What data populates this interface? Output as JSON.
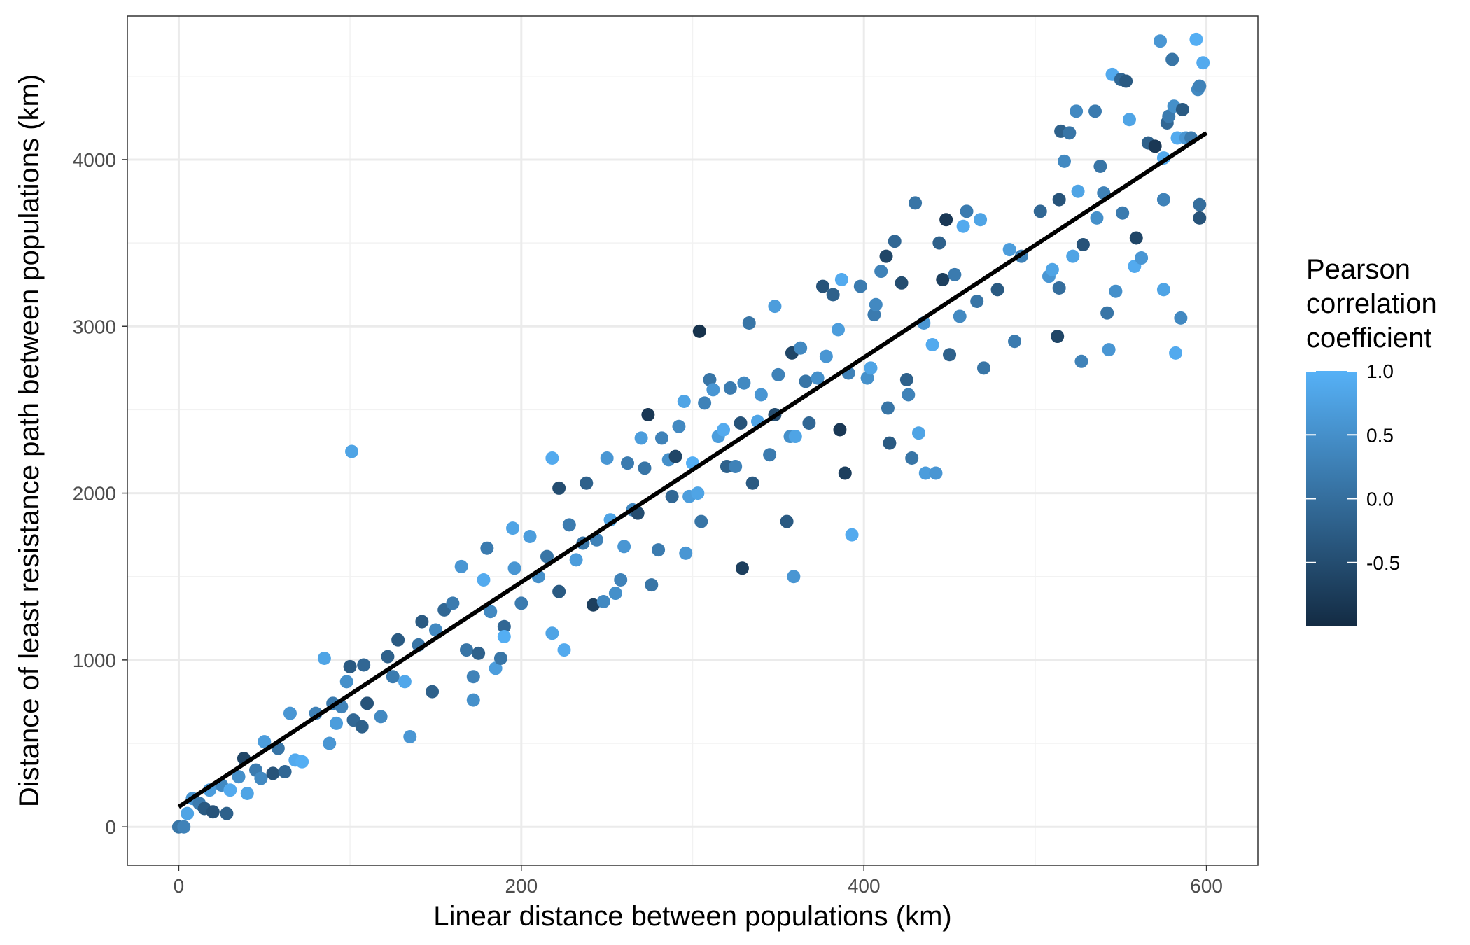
{
  "chart_data": {
    "type": "scatter",
    "title": "",
    "xlabel": "Linear distance between populations (km)",
    "ylabel": "Distance of least resistance path between populations (km)",
    "xlim": [
      -30,
      630
    ],
    "ylim": [
      -230,
      4860
    ],
    "x_ticks": [
      0,
      200,
      400,
      600
    ],
    "y_ticks": [
      0,
      1000,
      2000,
      3000,
      4000
    ],
    "grid": true,
    "legend": {
      "title": [
        "Pearson",
        "correlation",
        "coefficient"
      ],
      "position": "right",
      "type": "colorbar",
      "range": [
        -1.0,
        1.0
      ],
      "ticks": [
        1.0,
        0.5,
        0.0,
        -0.5
      ],
      "tick_labels": [
        "1.0",
        "0.5",
        "0.0",
        "-0.5"
      ],
      "color_low": "#132B43",
      "color_high": "#56B1F7"
    },
    "trend_line": {
      "x": [
        0,
        600
      ],
      "y": [
        120,
        4160
      ],
      "color": "#000000"
    },
    "points": [
      {
        "x": 0,
        "y": 0,
        "c": 0.1
      },
      {
        "x": 3,
        "y": 0,
        "c": 0.3
      },
      {
        "x": 5,
        "y": 80,
        "c": 0.8
      },
      {
        "x": 8,
        "y": 170,
        "c": 0.6
      },
      {
        "x": 12,
        "y": 140,
        "c": 0.2
      },
      {
        "x": 15,
        "y": 110,
        "c": -0.3
      },
      {
        "x": 18,
        "y": 220,
        "c": 0.7
      },
      {
        "x": 20,
        "y": 90,
        "c": -0.4
      },
      {
        "x": 25,
        "y": 250,
        "c": 0.4
      },
      {
        "x": 28,
        "y": 80,
        "c": -0.2
      },
      {
        "x": 30,
        "y": 220,
        "c": 0.9
      },
      {
        "x": 35,
        "y": 300,
        "c": 0.5
      },
      {
        "x": 38,
        "y": 410,
        "c": -0.6
      },
      {
        "x": 40,
        "y": 200,
        "c": 0.8
      },
      {
        "x": 45,
        "y": 340,
        "c": 0.2
      },
      {
        "x": 48,
        "y": 290,
        "c": 0.4
      },
      {
        "x": 50,
        "y": 510,
        "c": 0.7
      },
      {
        "x": 55,
        "y": 320,
        "c": -0.4
      },
      {
        "x": 58,
        "y": 470,
        "c": 0.1
      },
      {
        "x": 62,
        "y": 330,
        "c": -0.1
      },
      {
        "x": 65,
        "y": 680,
        "c": 0.6
      },
      {
        "x": 68,
        "y": 400,
        "c": 0.9
      },
      {
        "x": 72,
        "y": 390,
        "c": 0.95
      },
      {
        "x": 80,
        "y": 680,
        "c": 0.3
      },
      {
        "x": 85,
        "y": 1010,
        "c": 0.8
      },
      {
        "x": 88,
        "y": 500,
        "c": 0.6
      },
      {
        "x": 90,
        "y": 740,
        "c": 0.2
      },
      {
        "x": 92,
        "y": 620,
        "c": 0.7
      },
      {
        "x": 95,
        "y": 720,
        "c": 0.3
      },
      {
        "x": 98,
        "y": 870,
        "c": 0.5
      },
      {
        "x": 100,
        "y": 960,
        "c": -0.3
      },
      {
        "x": 101,
        "y": 2250,
        "c": 0.8
      },
      {
        "x": 102,
        "y": 640,
        "c": -0.1
      },
      {
        "x": 107,
        "y": 600,
        "c": -0.2
      },
      {
        "x": 108,
        "y": 970,
        "c": -0.1
      },
      {
        "x": 110,
        "y": 740,
        "c": -0.4
      },
      {
        "x": 118,
        "y": 660,
        "c": 0.4
      },
      {
        "x": 122,
        "y": 1020,
        "c": -0.2
      },
      {
        "x": 125,
        "y": 900,
        "c": 0.2
      },
      {
        "x": 128,
        "y": 1120,
        "c": -0.3
      },
      {
        "x": 132,
        "y": 870,
        "c": 0.85
      },
      {
        "x": 135,
        "y": 540,
        "c": 0.6
      },
      {
        "x": 140,
        "y": 1090,
        "c": 0.1
      },
      {
        "x": 142,
        "y": 1230,
        "c": -0.3
      },
      {
        "x": 148,
        "y": 810,
        "c": -0.2
      },
      {
        "x": 150,
        "y": 1180,
        "c": 0.4
      },
      {
        "x": 155,
        "y": 1300,
        "c": -0.1
      },
      {
        "x": 160,
        "y": 1340,
        "c": 0.2
      },
      {
        "x": 165,
        "y": 1560,
        "c": 0.6
      },
      {
        "x": 168,
        "y": 1060,
        "c": 0.1
      },
      {
        "x": 172,
        "y": 900,
        "c": 0.3
      },
      {
        "x": 172,
        "y": 760,
        "c": 0.5
      },
      {
        "x": 175,
        "y": 1040,
        "c": -0.2
      },
      {
        "x": 178,
        "y": 1480,
        "c": 0.9
      },
      {
        "x": 180,
        "y": 1670,
        "c": 0.2
      },
      {
        "x": 182,
        "y": 1290,
        "c": 0.4
      },
      {
        "x": 185,
        "y": 950,
        "c": 0.7
      },
      {
        "x": 188,
        "y": 1010,
        "c": 0.1
      },
      {
        "x": 190,
        "y": 1200,
        "c": -0.1
      },
      {
        "x": 190,
        "y": 1140,
        "c": 0.95
      },
      {
        "x": 195,
        "y": 1790,
        "c": 0.8
      },
      {
        "x": 196,
        "y": 1550,
        "c": 0.6
      },
      {
        "x": 200,
        "y": 1340,
        "c": 0.2
      },
      {
        "x": 205,
        "y": 1740,
        "c": 0.7
      },
      {
        "x": 210,
        "y": 1500,
        "c": 0.5
      },
      {
        "x": 215,
        "y": 1620,
        "c": 0.1
      },
      {
        "x": 218,
        "y": 1160,
        "c": 0.8
      },
      {
        "x": 218,
        "y": 2210,
        "c": 0.9
      },
      {
        "x": 222,
        "y": 1410,
        "c": -0.3
      },
      {
        "x": 222,
        "y": 2030,
        "c": -0.5
      },
      {
        "x": 225,
        "y": 1060,
        "c": 0.9
      },
      {
        "x": 228,
        "y": 1810,
        "c": 0.2
      },
      {
        "x": 232,
        "y": 1600,
        "c": 0.7
      },
      {
        "x": 236,
        "y": 1700,
        "c": 0.1
      },
      {
        "x": 238,
        "y": 2060,
        "c": -0.2
      },
      {
        "x": 242,
        "y": 1330,
        "c": -0.7
      },
      {
        "x": 244,
        "y": 1720,
        "c": 0.3
      },
      {
        "x": 248,
        "y": 1350,
        "c": 0.4
      },
      {
        "x": 250,
        "y": 2210,
        "c": 0.6
      },
      {
        "x": 252,
        "y": 1840,
        "c": 0.8
      },
      {
        "x": 255,
        "y": 1400,
        "c": 0.5
      },
      {
        "x": 258,
        "y": 1480,
        "c": 0.3
      },
      {
        "x": 260,
        "y": 1680,
        "c": 0.6
      },
      {
        "x": 262,
        "y": 2180,
        "c": 0.2
      },
      {
        "x": 265,
        "y": 1900,
        "c": 0.4
      },
      {
        "x": 268,
        "y": 1880,
        "c": -0.5
      },
      {
        "x": 270,
        "y": 2330,
        "c": 0.7
      },
      {
        "x": 272,
        "y": 2150,
        "c": 0.1
      },
      {
        "x": 274,
        "y": 2470,
        "c": -0.8
      },
      {
        "x": 276,
        "y": 1450,
        "c": 0.1
      },
      {
        "x": 280,
        "y": 1660,
        "c": 0.2
      },
      {
        "x": 282,
        "y": 2330,
        "c": 0.3
      },
      {
        "x": 286,
        "y": 2200,
        "c": 0.5
      },
      {
        "x": 288,
        "y": 1980,
        "c": -0.1
      },
      {
        "x": 290,
        "y": 2220,
        "c": -0.6
      },
      {
        "x": 292,
        "y": 2400,
        "c": 0.4
      },
      {
        "x": 295,
        "y": 2550,
        "c": 0.8
      },
      {
        "x": 296,
        "y": 1640,
        "c": 0.6
      },
      {
        "x": 298,
        "y": 1980,
        "c": 0.7
      },
      {
        "x": 300,
        "y": 2180,
        "c": 0.95
      },
      {
        "x": 303,
        "y": 2000,
        "c": 0.8
      },
      {
        "x": 304,
        "y": 2970,
        "c": -0.9
      },
      {
        "x": 305,
        "y": 1830,
        "c": 0.1
      },
      {
        "x": 307,
        "y": 2540,
        "c": 0.3
      },
      {
        "x": 310,
        "y": 2680,
        "c": 0.1
      },
      {
        "x": 312,
        "y": 2620,
        "c": 0.6
      },
      {
        "x": 315,
        "y": 2340,
        "c": 0.7
      },
      {
        "x": 318,
        "y": 2380,
        "c": 0.9
      },
      {
        "x": 320,
        "y": 2160,
        "c": -0.2
      },
      {
        "x": 322,
        "y": 2630,
        "c": 0.2
      },
      {
        "x": 325,
        "y": 2160,
        "c": 0.3
      },
      {
        "x": 328,
        "y": 2420,
        "c": -0.4
      },
      {
        "x": 329,
        "y": 1550,
        "c": -0.7
      },
      {
        "x": 330,
        "y": 2660,
        "c": 0.4
      },
      {
        "x": 333,
        "y": 3020,
        "c": 0.1
      },
      {
        "x": 335,
        "y": 2060,
        "c": -0.3
      },
      {
        "x": 338,
        "y": 2430,
        "c": 0.8
      },
      {
        "x": 340,
        "y": 2590,
        "c": 0.6
      },
      {
        "x": 345,
        "y": 2230,
        "c": 0.2
      },
      {
        "x": 348,
        "y": 2470,
        "c": -0.5
      },
      {
        "x": 348,
        "y": 3120,
        "c": 0.7
      },
      {
        "x": 350,
        "y": 2710,
        "c": 0.3
      },
      {
        "x": 355,
        "y": 1830,
        "c": -0.3
      },
      {
        "x": 357,
        "y": 2340,
        "c": 0.5
      },
      {
        "x": 358,
        "y": 2840,
        "c": -0.6
      },
      {
        "x": 359,
        "y": 1500,
        "c": 0.6
      },
      {
        "x": 360,
        "y": 2340,
        "c": 0.8
      },
      {
        "x": 363,
        "y": 2870,
        "c": 0.4
      },
      {
        "x": 366,
        "y": 2670,
        "c": 0.1
      },
      {
        "x": 368,
        "y": 2420,
        "c": -0.1
      },
      {
        "x": 373,
        "y": 2690,
        "c": 0.5
      },
      {
        "x": 376,
        "y": 3240,
        "c": -0.4
      },
      {
        "x": 378,
        "y": 2820,
        "c": 0.6
      },
      {
        "x": 382,
        "y": 3190,
        "c": -0.2
      },
      {
        "x": 385,
        "y": 2980,
        "c": 0.7
      },
      {
        "x": 386,
        "y": 2380,
        "c": -0.8
      },
      {
        "x": 387,
        "y": 3280,
        "c": 0.9
      },
      {
        "x": 389,
        "y": 2120,
        "c": -0.7
      },
      {
        "x": 391,
        "y": 2720,
        "c": 0.3
      },
      {
        "x": 393,
        "y": 1750,
        "c": 0.9
      },
      {
        "x": 398,
        "y": 3240,
        "c": 0.2
      },
      {
        "x": 402,
        "y": 2690,
        "c": 0.5
      },
      {
        "x": 404,
        "y": 2750,
        "c": 0.8
      },
      {
        "x": 406,
        "y": 3070,
        "c": 0.2
      },
      {
        "x": 407,
        "y": 3130,
        "c": 0.4
      },
      {
        "x": 410,
        "y": 3330,
        "c": 0.3
      },
      {
        "x": 413,
        "y": 3420,
        "c": -0.6
      },
      {
        "x": 414,
        "y": 2510,
        "c": 0.1
      },
      {
        "x": 415,
        "y": 2300,
        "c": -0.3
      },
      {
        "x": 418,
        "y": 3510,
        "c": -0.1
      },
      {
        "x": 422,
        "y": 3260,
        "c": -0.5
      },
      {
        "x": 425,
        "y": 2680,
        "c": -0.2
      },
      {
        "x": 426,
        "y": 2590,
        "c": 0.3
      },
      {
        "x": 428,
        "y": 2210,
        "c": 0.1
      },
      {
        "x": 430,
        "y": 3740,
        "c": 0.1
      },
      {
        "x": 432,
        "y": 2360,
        "c": 0.8
      },
      {
        "x": 435,
        "y": 3020,
        "c": 0.6
      },
      {
        "x": 436,
        "y": 2120,
        "c": 0.7
      },
      {
        "x": 440,
        "y": 2890,
        "c": 0.9
      },
      {
        "x": 442,
        "y": 2120,
        "c": 0.6
      },
      {
        "x": 444,
        "y": 3500,
        "c": -0.2
      },
      {
        "x": 446,
        "y": 3280,
        "c": -0.7
      },
      {
        "x": 448,
        "y": 3640,
        "c": -0.8
      },
      {
        "x": 450,
        "y": 2830,
        "c": -0.2
      },
      {
        "x": 453,
        "y": 3310,
        "c": 0.2
      },
      {
        "x": 456,
        "y": 3060,
        "c": 0.4
      },
      {
        "x": 458,
        "y": 3600,
        "c": 0.9
      },
      {
        "x": 460,
        "y": 3690,
        "c": 0.2
      },
      {
        "x": 466,
        "y": 3150,
        "c": 0.1
      },
      {
        "x": 468,
        "y": 3640,
        "c": 0.8
      },
      {
        "x": 470,
        "y": 2750,
        "c": 0.1
      },
      {
        "x": 478,
        "y": 3220,
        "c": -0.3
      },
      {
        "x": 485,
        "y": 3460,
        "c": 0.7
      },
      {
        "x": 488,
        "y": 2910,
        "c": 0.2
      },
      {
        "x": 492,
        "y": 3420,
        "c": 0.3
      },
      {
        "x": 503,
        "y": 3690,
        "c": -0.1
      },
      {
        "x": 508,
        "y": 3300,
        "c": 0.6
      },
      {
        "x": 510,
        "y": 3340,
        "c": 0.8
      },
      {
        "x": 513,
        "y": 2940,
        "c": -0.6
      },
      {
        "x": 514,
        "y": 3760,
        "c": -0.4
      },
      {
        "x": 514,
        "y": 3230,
        "c": 0.0
      },
      {
        "x": 515,
        "y": 4170,
        "c": -0.2
      },
      {
        "x": 517,
        "y": 3990,
        "c": 0.4
      },
      {
        "x": 520,
        "y": 4160,
        "c": 0.1
      },
      {
        "x": 522,
        "y": 3420,
        "c": 0.8
      },
      {
        "x": 524,
        "y": 4290,
        "c": 0.4
      },
      {
        "x": 525,
        "y": 3810,
        "c": 0.8
      },
      {
        "x": 527,
        "y": 2790,
        "c": 0.3
      },
      {
        "x": 528,
        "y": 3490,
        "c": -0.4
      },
      {
        "x": 535,
        "y": 4290,
        "c": 0.2
      },
      {
        "x": 536,
        "y": 3650,
        "c": 0.5
      },
      {
        "x": 538,
        "y": 3960,
        "c": 0.1
      },
      {
        "x": 540,
        "y": 3800,
        "c": 0.3
      },
      {
        "x": 542,
        "y": 3080,
        "c": 0.1
      },
      {
        "x": 543,
        "y": 2860,
        "c": 0.6
      },
      {
        "x": 545,
        "y": 4510,
        "c": 0.9
      },
      {
        "x": 547,
        "y": 3210,
        "c": 0.5
      },
      {
        "x": 550,
        "y": 4480,
        "c": -0.1
      },
      {
        "x": 551,
        "y": 3680,
        "c": 0.2
      },
      {
        "x": 553,
        "y": 4470,
        "c": -0.3
      },
      {
        "x": 555,
        "y": 4240,
        "c": 0.8
      },
      {
        "x": 558,
        "y": 3360,
        "c": 0.9
      },
      {
        "x": 559,
        "y": 3530,
        "c": -0.6
      },
      {
        "x": 562,
        "y": 3410,
        "c": 0.6
      },
      {
        "x": 566,
        "y": 4100,
        "c": -0.2
      },
      {
        "x": 570,
        "y": 4080,
        "c": -0.8
      },
      {
        "x": 573,
        "y": 4710,
        "c": 0.6
      },
      {
        "x": 575,
        "y": 4010,
        "c": 0.9
      },
      {
        "x": 575,
        "y": 3760,
        "c": 0.3
      },
      {
        "x": 575,
        "y": 3220,
        "c": 0.8
      },
      {
        "x": 577,
        "y": 4220,
        "c": -0.1
      },
      {
        "x": 578,
        "y": 4260,
        "c": 0.2
      },
      {
        "x": 580,
        "y": 4600,
        "c": 0.1
      },
      {
        "x": 581,
        "y": 4320,
        "c": 0.5
      },
      {
        "x": 582,
        "y": 2840,
        "c": 0.9
      },
      {
        "x": 583,
        "y": 4130,
        "c": 0.9
      },
      {
        "x": 585,
        "y": 3050,
        "c": 0.4
      },
      {
        "x": 586,
        "y": 4300,
        "c": -0.3
      },
      {
        "x": 588,
        "y": 4130,
        "c": 0.6
      },
      {
        "x": 591,
        "y": 4130,
        "c": 0.2
      },
      {
        "x": 594,
        "y": 4720,
        "c": 0.95
      },
      {
        "x": 595,
        "y": 4420,
        "c": 0.4
      },
      {
        "x": 596,
        "y": 4440,
        "c": 0.3
      },
      {
        "x": 596,
        "y": 3730,
        "c": 0.0
      },
      {
        "x": 596,
        "y": 3650,
        "c": -0.4
      },
      {
        "x": 598,
        "y": 4580,
        "c": 0.9
      }
    ]
  }
}
